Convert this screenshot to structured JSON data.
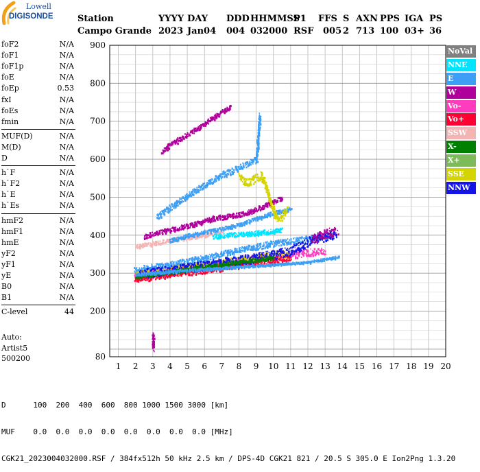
{
  "logo": {
    "brand": "Lowell",
    "product": "DIGISONDE"
  },
  "header": {
    "labels": [
      "Station",
      "YYYY",
      "DAY",
      "DDD",
      "HHMMSS",
      "P1",
      "FFS",
      "S",
      "AXN",
      "PPS",
      "IGA",
      "PS"
    ],
    "values": [
      "Campo Grande",
      "2023",
      "Jan04",
      "004",
      "032000",
      "RSF",
      "005",
      "2",
      "713",
      "100",
      "03+",
      "36"
    ]
  },
  "params": {
    "group1": [
      {
        "name": "foF2",
        "value": "N/A"
      },
      {
        "name": "foF1",
        "value": "N/A"
      },
      {
        "name": "foF1p",
        "value": "N/A"
      },
      {
        "name": "foE",
        "value": "N/A"
      },
      {
        "name": "foEp",
        "value": "0.53"
      },
      {
        "name": "fxI",
        "value": "N/A"
      },
      {
        "name": "foEs",
        "value": "N/A"
      },
      {
        "name": "fmin",
        "value": "N/A"
      }
    ],
    "group2": [
      {
        "name": "MUF(D)",
        "value": "N/A"
      },
      {
        "name": "M(D)",
        "value": "N/A"
      },
      {
        "name": "D",
        "value": "N/A"
      }
    ],
    "group3": [
      {
        "name": "h`F",
        "value": "N/A"
      },
      {
        "name": "h`F2",
        "value": "N/A"
      },
      {
        "name": "h`E",
        "value": "N/A"
      },
      {
        "name": "h`Es",
        "value": "N/A"
      }
    ],
    "group4": [
      {
        "name": "hmF2",
        "value": "N/A"
      },
      {
        "name": "hmF1",
        "value": "N/A"
      },
      {
        "name": "hmE",
        "value": "N/A"
      },
      {
        "name": "yF2",
        "value": "N/A"
      },
      {
        "name": "yF1",
        "value": "N/A"
      },
      {
        "name": "yE",
        "value": "N/A"
      },
      {
        "name": "B0",
        "value": "N/A"
      },
      {
        "name": "B1",
        "value": "N/A"
      }
    ],
    "group5": [
      {
        "name": "C-level",
        "value": "44"
      }
    ]
  },
  "auto": {
    "line1": "Auto:",
    "line2": "Artist5",
    "line3": "500200"
  },
  "legend": [
    {
      "label": "NoVal",
      "color": "#808080"
    },
    {
      "label": "NNE",
      "color": "#00e5ff"
    },
    {
      "label": "E",
      "color": "#3c9ff5"
    },
    {
      "label": "W",
      "color": "#b0009c"
    },
    {
      "label": "Vo-",
      "color": "#ff3cbe"
    },
    {
      "label": "Vo+",
      "color": "#ff0032"
    },
    {
      "label": "SSW",
      "color": "#f5b4b4"
    },
    {
      "label": "X-",
      "color": "#008000"
    },
    {
      "label": "X+",
      "color": "#7cba5a"
    },
    {
      "label": "SSE",
      "color": "#d4d400"
    },
    {
      "label": "NNW",
      "color": "#1414e6"
    }
  ],
  "bottom": {
    "d_row": "D      100  200  400  600  800 1000 1500 3000 [km]",
    "muf_row": "MUF    0.0  0.0  0.0  0.0  0.0  0.0  0.0  0.0 [MHz]",
    "footer": "CGK21_2023004032000.RSF / 384fx512h 50 kHz 2.5 km / DPS-4D CGK21 821 / 20.5 S 305.0 E Ion2Png 1.3.20"
  },
  "chart_data": {
    "type": "scatter",
    "xlim": [
      0.5,
      20
    ],
    "ylim": [
      80,
      900
    ],
    "x_ticks": [
      1,
      2,
      3,
      4,
      5,
      6,
      7,
      8,
      9,
      10,
      11,
      12,
      13,
      14,
      15,
      16,
      17,
      18,
      19,
      20
    ],
    "y_ticks": [
      80,
      200,
      300,
      400,
      500,
      600,
      700,
      800,
      900
    ],
    "grid": true,
    "legend_position": "right",
    "traces": [
      {
        "series": "E",
        "points": [
          [
            1.9,
            310
          ],
          [
            3,
            318
          ],
          [
            4,
            325
          ],
          [
            5,
            333
          ],
          [
            6,
            342
          ],
          [
            7,
            352
          ],
          [
            8,
            362
          ],
          [
            9,
            372
          ],
          [
            10,
            380
          ],
          [
            11,
            386
          ],
          [
            12,
            392
          ],
          [
            13,
            398
          ],
          [
            13.6,
            402
          ]
        ],
        "spread": 8
      },
      {
        "series": "Vo-",
        "points": [
          [
            1.9,
            292
          ],
          [
            3,
            300
          ],
          [
            4,
            305
          ],
          [
            5,
            312
          ],
          [
            6,
            318
          ],
          [
            7,
            325
          ],
          [
            8,
            332
          ],
          [
            9,
            340
          ],
          [
            10,
            345
          ],
          [
            11,
            350
          ],
          [
            12,
            356
          ],
          [
            13,
            360
          ]
        ],
        "spread": 10
      },
      {
        "series": "SSE",
        "points": [
          [
            2,
            296
          ],
          [
            3,
            302
          ],
          [
            4,
            308
          ],
          [
            5,
            315
          ],
          [
            6,
            320
          ],
          [
            7,
            328
          ],
          [
            8,
            334
          ],
          [
            9,
            342
          ],
          [
            10,
            350
          ],
          [
            11,
            352
          ]
        ],
        "spread": 11
      },
      {
        "series": "Vo+",
        "points": [
          [
            1.9,
            285
          ],
          [
            3,
            292
          ],
          [
            4,
            298
          ],
          [
            5,
            304
          ],
          [
            6,
            310
          ],
          [
            7,
            315
          ],
          [
            8,
            322
          ],
          [
            9,
            330
          ],
          [
            10,
            336
          ],
          [
            11,
            342
          ]
        ],
        "spread": 8
      },
      {
        "series": "NNW",
        "points": [
          [
            2.2,
            300
          ],
          [
            4,
            310
          ],
          [
            6,
            322
          ],
          [
            8,
            336
          ],
          [
            10,
            350
          ],
          [
            11,
            360
          ],
          [
            12,
            385
          ],
          [
            13,
            398
          ],
          [
            13.6,
            405
          ]
        ],
        "spread": 12
      },
      {
        "series": "X-",
        "points": [
          [
            2,
            292
          ],
          [
            4,
            305
          ],
          [
            6,
            318
          ],
          [
            8,
            330
          ],
          [
            10,
            342
          ]
        ],
        "spread": 5
      },
      {
        "series": "E",
        "points": [
          [
            2,
            298
          ],
          [
            4,
            306
          ],
          [
            6,
            312
          ],
          [
            8,
            318
          ],
          [
            10,
            324
          ],
          [
            12,
            330
          ],
          [
            13,
            338
          ],
          [
            13.8,
            345
          ]
        ],
        "spread": 3
      },
      {
        "series": "W",
        "points": [
          [
            2.5,
            398
          ],
          [
            3.5,
            410
          ],
          [
            4.5,
            420
          ],
          [
            5.5,
            432
          ],
          [
            6.5,
            446
          ],
          [
            7.5,
            452
          ],
          [
            8.5,
            460
          ],
          [
            9.5,
            480
          ],
          [
            10.5,
            500
          ]
        ],
        "spread": 6
      },
      {
        "series": "SSW",
        "points": [
          [
            2,
            372
          ],
          [
            3,
            380
          ],
          [
            4,
            388
          ],
          [
            5,
            394
          ],
          [
            6,
            402
          ],
          [
            7,
            410
          ]
        ],
        "spread": 5
      },
      {
        "series": "E",
        "points": [
          [
            4,
            388
          ],
          [
            5,
            400
          ],
          [
            6,
            410
          ],
          [
            7,
            418
          ],
          [
            8,
            430
          ],
          [
            9,
            445
          ],
          [
            10,
            460
          ],
          [
            11,
            470
          ]
        ],
        "spread": 5
      },
      {
        "series": "NNE",
        "points": [
          [
            6.5,
            398
          ],
          [
            7.5,
            402
          ],
          [
            8.5,
            405
          ],
          [
            9.5,
            410
          ],
          [
            10.5,
            416
          ]
        ],
        "spread": 6
      },
      {
        "series": "W",
        "points": [
          [
            12.2,
            390
          ],
          [
            12.8,
            402
          ],
          [
            13.3,
            410
          ],
          [
            13.7,
            412
          ]
        ],
        "spread": 12
      },
      {
        "series": "SSE",
        "points": [
          [
            8,
            555
          ],
          [
            8.5,
            540
          ],
          [
            9.3,
            560
          ],
          [
            10.2,
            440
          ],
          [
            10.8,
            470
          ]
        ],
        "spread": 10
      },
      {
        "series": "W",
        "points": [
          [
            3.5,
            620
          ],
          [
            4,
            640
          ],
          [
            5.5,
            680
          ],
          [
            7.5,
            740
          ]
        ],
        "spread": 6
      },
      {
        "series": "E",
        "points": [
          [
            3.2,
            450
          ],
          [
            5.5,
            520
          ],
          [
            7,
            560
          ],
          [
            9,
            600
          ],
          [
            9.2,
            720
          ]
        ],
        "spread": 8
      },
      {
        "series": "W",
        "points": [
          [
            3,
            100
          ],
          [
            3,
            140
          ]
        ],
        "spread": 10
      }
    ]
  }
}
